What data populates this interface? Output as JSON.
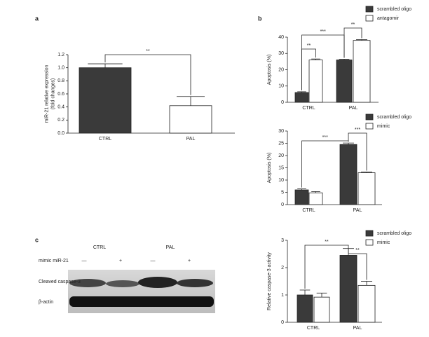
{
  "panel_labels": [
    "a",
    "b",
    "c"
  ],
  "blot": {
    "groups": [
      "CTRL",
      "PAL"
    ],
    "row_label": "mimic miR-21",
    "treatments": [
      "—",
      "+",
      "—",
      "+"
    ],
    "bands": [
      "Cleaved caspase-3",
      "β-actin"
    ]
  },
  "chart_data": [
    {
      "type": "bar",
      "ylabel": [
        "miR-21 relative expression",
        "(fold changes)"
      ],
      "categories": [
        "CTRL",
        "PAL"
      ],
      "values": [
        1.0,
        0.42
      ],
      "errors": [
        0.06,
        0.14
      ],
      "colors": [
        "#3a3a3a",
        "#ffffff"
      ],
      "ylim": [
        0,
        1.2
      ],
      "yticks": [
        {
          "value": 0,
          "label": "0.0"
        },
        {
          "value": 0.2,
          "label": "0.2"
        },
        {
          "value": 0.4,
          "label": "0.4"
        },
        {
          "value": 0.6,
          "label": "0.6"
        },
        {
          "value": 0.8,
          "label": "0.8"
        },
        {
          "value": 1.0,
          "label": "1.0"
        },
        {
          "value": 1.2,
          "label": "1.2"
        }
      ],
      "annotations": [
        "**"
      ]
    },
    {
      "type": "grouped_bar",
      "ylabel": [
        "Apoptosis (%)"
      ],
      "categories": [
        "CTRL",
        "PAL"
      ],
      "series": [
        {
          "name": "scrambled oligo",
          "color": "#3a3a3a",
          "values": [
            6,
            26
          ],
          "errors": [
            0.5,
            0.5
          ]
        },
        {
          "name": "antagomir",
          "color": "#ffffff",
          "values": [
            26,
            38
          ],
          "errors": [
            0.6,
            0.5
          ]
        }
      ],
      "ylim": [
        0,
        40
      ],
      "yticks": [
        0,
        10,
        20,
        30,
        40
      ],
      "annotations": [
        "**",
        "**",
        "***"
      ]
    },
    {
      "type": "grouped_bar",
      "ylabel": [
        "Apoptosis (%)"
      ],
      "categories": [
        "CTRL",
        "PAL"
      ],
      "series": [
        {
          "name": "scrambled oligo",
          "color": "#3a3a3a",
          "values": [
            6,
            24.5
          ],
          "errors": [
            0.4,
            0.6
          ]
        },
        {
          "name": "mimic",
          "color": "#ffffff",
          "values": [
            4.8,
            13
          ],
          "errors": [
            0.5,
            0.3
          ]
        }
      ],
      "ylim": [
        0,
        30
      ],
      "yticks": [
        0,
        5,
        10,
        15,
        20,
        25,
        30
      ],
      "annotations": [
        "***",
        "***"
      ]
    },
    {
      "type": "grouped_bar",
      "ylabel": [
        "Relative caspase-3 activity"
      ],
      "categories": [
        "CTRL",
        "PAL"
      ],
      "series": [
        {
          "name": "scrambled oligo",
          "color": "#3a3a3a",
          "values": [
            1.0,
            2.45
          ],
          "errors": [
            0.18,
            0.25
          ]
        },
        {
          "name": "mimic",
          "color": "#ffffff",
          "values": [
            0.92,
            1.35
          ],
          "errors": [
            0.15,
            0.15
          ]
        }
      ],
      "ylim": [
        0,
        3
      ],
      "yticks": [
        0,
        1,
        2,
        3
      ],
      "annotations": [
        "**",
        "**"
      ]
    }
  ]
}
